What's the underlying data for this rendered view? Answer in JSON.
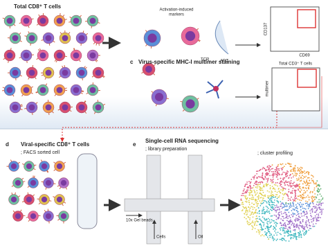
{
  "panel_a": {
    "title": "Total CD8⁺ T cells"
  },
  "panel_b": {
    "markers_label_1": "Activation-induced",
    "markers_label_2": "markers",
    "tcr_label": "TCR",
    "apc_label": "APC",
    "y_axis": "CD137",
    "x_axis": "CD69"
  },
  "panel_c": {
    "letter": "c",
    "title": "Virus-specific MHC-I multimer staining",
    "plot_title": "Total CD3⁺ T cells",
    "y_axis": "multimer"
  },
  "panel_d": {
    "letter": "d",
    "title": "Viral-specific CD8⁺ T cells",
    "subtitle": "; FACS sorted cell"
  },
  "panel_e": {
    "letter": "e",
    "title": "Single-cell RNA sequencing",
    "subtitle": "; library preparation",
    "beads_label": "10x Gel beads",
    "cells_label": "Cells",
    "oil_label": "Oil"
  },
  "panel_f": {
    "subtitle": "; cluster profiling"
  }
}
